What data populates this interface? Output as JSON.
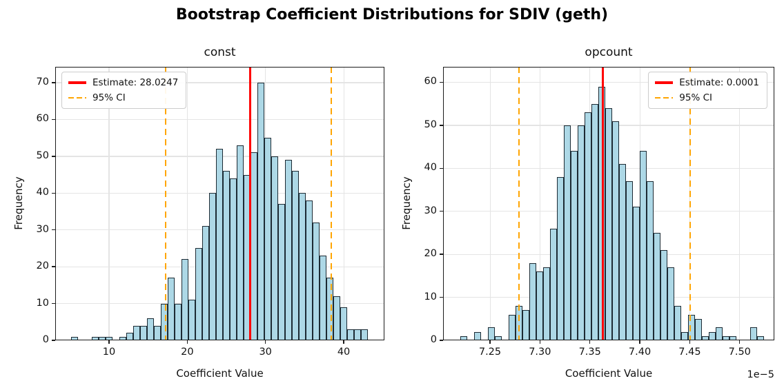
{
  "figure": {
    "title": "Bootstrap Coefficient Distributions for SDIV (geth)"
  },
  "colors": {
    "bar_fill": "#ADD8E6",
    "bar_edge": "#1c2a33",
    "estimate_line": "#ff0000",
    "ci_line": "#FFA500",
    "grid": "#e4e4e4",
    "spine": "#1a1a1a",
    "background": "#ffffff"
  },
  "chart_data": [
    {
      "type": "bar",
      "subtype": "histogram",
      "title": "const",
      "xlabel": "Coefficient Value",
      "ylabel": "Frequency",
      "legend": {
        "estimate_label": "Estimate: 28.0247",
        "ci_label": "95% CI",
        "position": "upper-left"
      },
      "estimate": 28.0247,
      "ci": [
        17.25,
        38.42
      ],
      "bin_start": 5.15,
      "bin_width": 0.8826,
      "counts": [
        1,
        0,
        0,
        1,
        1,
        1,
        0,
        1,
        2,
        4,
        4,
        6,
        4,
        10,
        17,
        10,
        22,
        11,
        25,
        31,
        40,
        52,
        46,
        44,
        53,
        45,
        51,
        70,
        55,
        50,
        37,
        49,
        46,
        40,
        38,
        32,
        23,
        17,
        12,
        9,
        3,
        3,
        3
      ],
      "xlim": [
        3.12,
        45.2
      ],
      "ylim": [
        0,
        74.3
      ],
      "xticks": {
        "values": [
          10,
          20,
          30,
          40
        ],
        "labels": [
          "10",
          "20",
          "30",
          "40"
        ]
      },
      "yticks": {
        "values": [
          0,
          10,
          20,
          30,
          40,
          50,
          60,
          70
        ],
        "labels": [
          "0",
          "10",
          "20",
          "30",
          "40",
          "50",
          "60",
          "70"
        ]
      },
      "grid": true,
      "offset_text": ""
    },
    {
      "type": "bar",
      "subtype": "histogram",
      "title": "opcount",
      "xlabel": "Coefficient Value",
      "ylabel": "Frequency",
      "legend": {
        "estimate_label": "Estimate: 0.0001",
        "ci_label": "95% CI",
        "position": "upper-right"
      },
      "estimate": 7.3627,
      "ci": [
        7.279,
        7.4503
      ],
      "bin_start": 7.2201,
      "bin_width": 0.006913,
      "counts": [
        1,
        0,
        2,
        0,
        3,
        1,
        0,
        6,
        8,
        7,
        18,
        16,
        17,
        26,
        38,
        50,
        44,
        50,
        53,
        55,
        59,
        54,
        51,
        41,
        37,
        31,
        44,
        37,
        25,
        21,
        17,
        8,
        2,
        6,
        5,
        1,
        2,
        3,
        1,
        1,
        0,
        0,
        3,
        1
      ],
      "xlim": [
        7.203,
        7.5347
      ],
      "ylim": [
        0,
        63.6
      ],
      "xticks": {
        "values": [
          7.25,
          7.3,
          7.35,
          7.4,
          7.45,
          7.5
        ],
        "labels": [
          "7.25",
          "7.30",
          "7.35",
          "7.40",
          "7.45",
          "7.50"
        ]
      },
      "yticks": {
        "values": [
          0,
          10,
          20,
          30,
          40,
          50,
          60
        ],
        "labels": [
          "0",
          "10",
          "20",
          "30",
          "40",
          "50",
          "60"
        ]
      },
      "grid": true,
      "offset_text": "1e−5"
    }
  ]
}
